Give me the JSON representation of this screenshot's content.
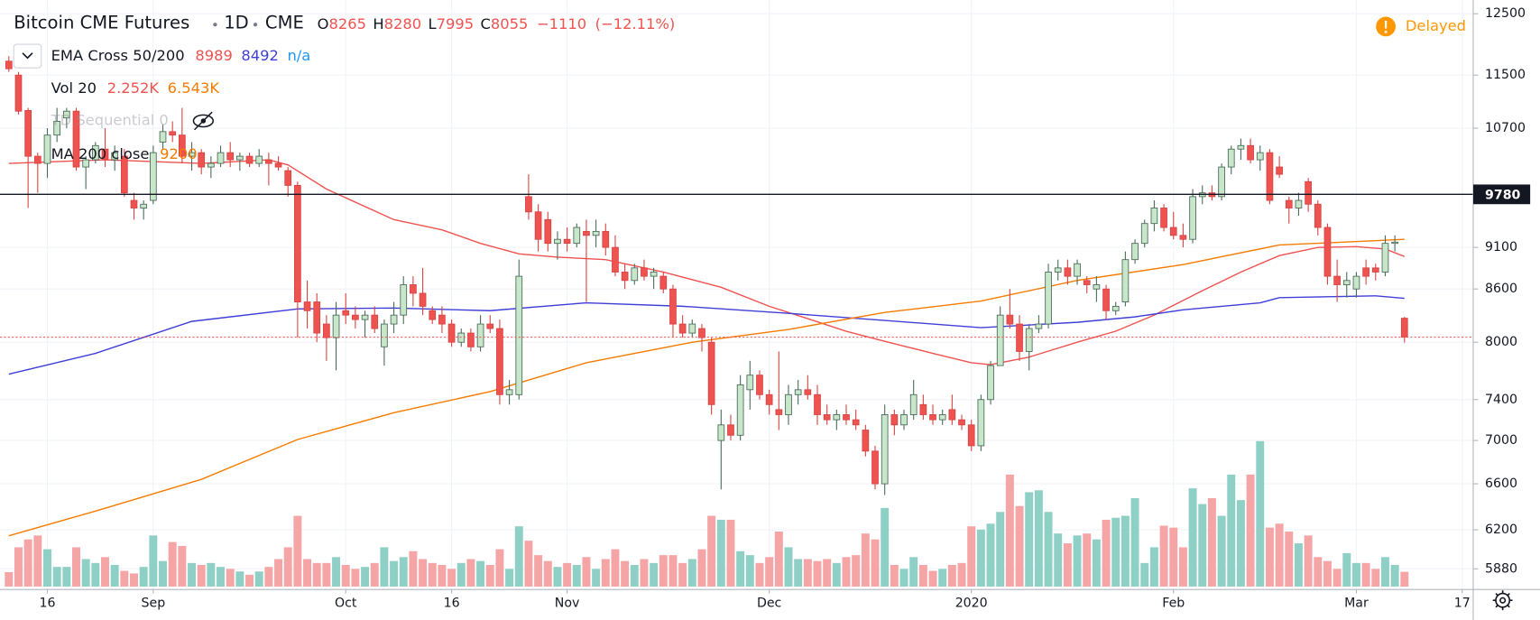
{
  "chart_data": {
    "type": "candlestick",
    "title": "Bitcoin CME Futures",
    "interval": "1D",
    "exchange": "CME",
    "status": "Delayed",
    "log_scale": true,
    "grid": true,
    "ylim": [
      5717,
      12735
    ],
    "yticks": [
      5880,
      6200,
      6600,
      7000,
      7400,
      8000,
      8600,
      9100,
      10700,
      11500,
      12500
    ],
    "xlim": [
      -0.92,
      152.14
    ],
    "xticks": [
      {
        "value": 4,
        "label": "16"
      },
      {
        "value": 15,
        "label": "Sep"
      },
      {
        "value": 35,
        "label": "Oct"
      },
      {
        "value": 46,
        "label": "16"
      },
      {
        "value": 58,
        "label": "Nov"
      },
      {
        "value": 79,
        "label": "Dec"
      },
      {
        "value": 100,
        "label": "2020"
      },
      {
        "value": 121,
        "label": "Feb"
      },
      {
        "value": 140,
        "label": "Mar"
      },
      {
        "value": 151,
        "label": "17"
      }
    ],
    "up_color": "#c8e6c9",
    "up_border": "#4a6b5a",
    "down_color": "#ef5350",
    "down_border": "#d84343",
    "volume_up_color": "#8fd0c6",
    "volume_down_color": "#f5a5a5",
    "volume_lim": [
      0,
      30000
    ],
    "header": {
      "labels": [
        "O",
        "H",
        "L",
        "C"
      ],
      "change": {
        "value": -1110,
        "label": "−1110"
      },
      "change_pct": {
        "value": -12.11,
        "label": "(−12.11%)"
      }
    },
    "hline": {
      "value": 9780,
      "color": "#131722"
    },
    "ohlc": [
      [
        11720,
        11800,
        11550,
        11600
      ],
      [
        11500,
        11550,
        10900,
        10950
      ],
      [
        10960,
        11000,
        9600,
        10300
      ],
      [
        10300,
        10350,
        9800,
        10200
      ],
      [
        10200,
        10700,
        10000,
        10600
      ],
      [
        10600,
        11000,
        10500,
        10800
      ],
      [
        10850,
        11000,
        10700,
        10950
      ],
      [
        10950,
        11000,
        10100,
        10150
      ],
      [
        10150,
        10300,
        9850,
        10250
      ],
      [
        10250,
        10500,
        10200,
        10450
      ],
      [
        10400,
        10700,
        10150,
        10250
      ],
      [
        10250,
        10450,
        10100,
        10350
      ],
      [
        10300,
        10400,
        9750,
        9800
      ],
      [
        9700,
        9800,
        9450,
        9600
      ],
      [
        9600,
        9700,
        9450,
        9650
      ],
      [
        9700,
        10450,
        9650,
        10350
      ],
      [
        10500,
        10750,
        10400,
        10650
      ],
      [
        10650,
        10800,
        10500,
        10600
      ],
      [
        10600,
        11000,
        10200,
        10300
      ],
      [
        10300,
        10500,
        10100,
        10350
      ],
      [
        10350,
        10400,
        10050,
        10150
      ],
      [
        10150,
        10300,
        10000,
        10200
      ],
      [
        10200,
        10450,
        10150,
        10350
      ],
      [
        10350,
        10500,
        10150,
        10250
      ],
      [
        10250,
        10350,
        10100,
        10300
      ],
      [
        10300,
        10350,
        10150,
        10200
      ],
      [
        10200,
        10400,
        10150,
        10300
      ],
      [
        10250,
        10350,
        9900,
        10200
      ],
      [
        10200,
        10300,
        10100,
        10150
      ],
      [
        10100,
        10150,
        9750,
        9900
      ],
      [
        9900,
        9950,
        8050,
        8450
      ],
      [
        8450,
        8700,
        8150,
        8350
      ],
      [
        8450,
        8550,
        8000,
        8100
      ],
      [
        8200,
        8300,
        7800,
        8050
      ],
      [
        8050,
        8450,
        7700,
        8300
      ],
      [
        8350,
        8550,
        8200,
        8300
      ],
      [
        8300,
        8400,
        8150,
        8250
      ],
      [
        8250,
        8350,
        8050,
        8300
      ],
      [
        8300,
        8400,
        8100,
        8150
      ],
      [
        7950,
        8250,
        7750,
        8200
      ],
      [
        8200,
        8450,
        8100,
        8300
      ],
      [
        8300,
        8750,
        8200,
        8650
      ],
      [
        8650,
        8750,
        8400,
        8550
      ],
      [
        8550,
        8850,
        8300,
        8400
      ],
      [
        8350,
        8400,
        8200,
        8250
      ],
      [
        8300,
        8400,
        8100,
        8200
      ],
      [
        8200,
        8250,
        7950,
        8000
      ],
      [
        8000,
        8150,
        7950,
        8100
      ],
      [
        8100,
        8150,
        7900,
        7950
      ],
      [
        7950,
        8300,
        7900,
        8200
      ],
      [
        8200,
        8300,
        8100,
        8150
      ],
      [
        8150,
        8250,
        7350,
        7450
      ],
      [
        7450,
        7600,
        7350,
        7500
      ],
      [
        7450,
        8950,
        7400,
        8750
      ],
      [
        9750,
        10050,
        9450,
        9550
      ],
      [
        9550,
        9650,
        9050,
        9200
      ],
      [
        9450,
        9550,
        9050,
        9150
      ],
      [
        9150,
        9300,
        8950,
        9200
      ],
      [
        9200,
        9350,
        9050,
        9150
      ],
      [
        9150,
        9400,
        9100,
        9350
      ],
      [
        9300,
        9450,
        8450,
        9250
      ],
      [
        9250,
        9450,
        9100,
        9300
      ],
      [
        9300,
        9400,
        9000,
        9100
      ],
      [
        9100,
        9250,
        8750,
        8800
      ],
      [
        8800,
        8900,
        8600,
        8700
      ],
      [
        8700,
        8900,
        8650,
        8850
      ],
      [
        8850,
        8950,
        8700,
        8750
      ],
      [
        8750,
        8850,
        8600,
        8800
      ],
      [
        8750,
        8800,
        8550,
        8600
      ],
      [
        8600,
        8650,
        8050,
        8200
      ],
      [
        8200,
        8300,
        8050,
        8100
      ],
      [
        8100,
        8250,
        8050,
        8200
      ],
      [
        8150,
        8200,
        7900,
        8050
      ],
      [
        8000,
        8050,
        7250,
        7350
      ],
      [
        7000,
        7300,
        6550,
        7150
      ],
      [
        7150,
        7250,
        7000,
        7050
      ],
      [
        7050,
        7650,
        7000,
        7550
      ],
      [
        7500,
        7800,
        7300,
        7650
      ],
      [
        7650,
        7700,
        7400,
        7450
      ],
      [
        7450,
        7500,
        7250,
        7350
      ],
      [
        7300,
        7900,
        7100,
        7250
      ],
      [
        7250,
        7550,
        7150,
        7450
      ],
      [
        7450,
        7600,
        7350,
        7500
      ],
      [
        7500,
        7650,
        7400,
        7450
      ],
      [
        7450,
        7550,
        7150,
        7250
      ],
      [
        7250,
        7350,
        7150,
        7200
      ],
      [
        7200,
        7300,
        7100,
        7250
      ],
      [
        7250,
        7350,
        7150,
        7200
      ],
      [
        7200,
        7300,
        7100,
        7150
      ],
      [
        7100,
        7150,
        6850,
        6900
      ],
      [
        6900,
        6950,
        6550,
        6600
      ],
      [
        6600,
        7350,
        6500,
        7250
      ],
      [
        7250,
        7300,
        7050,
        7150
      ],
      [
        7150,
        7300,
        7100,
        7250
      ],
      [
        7250,
        7600,
        7200,
        7450
      ],
      [
        7350,
        7450,
        7200,
        7250
      ],
      [
        7250,
        7350,
        7150,
        7200
      ],
      [
        7200,
        7300,
        7150,
        7250
      ],
      [
        7300,
        7450,
        7150,
        7200
      ],
      [
        7200,
        7250,
        7100,
        7150
      ],
      [
        7150,
        7200,
        6900,
        6950
      ],
      [
        6950,
        7450,
        6900,
        7400
      ],
      [
        7400,
        7800,
        7350,
        7750
      ],
      [
        7750,
        8400,
        7750,
        8300
      ],
      [
        8300,
        8600,
        8150,
        8200
      ],
      [
        8200,
        8300,
        7800,
        7900
      ],
      [
        7900,
        8200,
        7700,
        8150
      ],
      [
        8150,
        8300,
        8100,
        8200
      ],
      [
        8200,
        8900,
        8150,
        8800
      ],
      [
        8800,
        8950,
        8700,
        8850
      ],
      [
        8850,
        8950,
        8650,
        8750
      ],
      [
        8750,
        8950,
        8650,
        8900
      ],
      [
        8700,
        8750,
        8550,
        8650
      ],
      [
        8600,
        8750,
        8450,
        8650
      ],
      [
        8600,
        8650,
        8250,
        8350
      ],
      [
        8350,
        8450,
        8300,
        8400
      ],
      [
        8450,
        9050,
        8400,
        8950
      ],
      [
        8950,
        9200,
        8900,
        9150
      ],
      [
        9150,
        9450,
        9100,
        9400
      ],
      [
        9400,
        9700,
        9300,
        9600
      ],
      [
        9600,
        9650,
        9300,
        9350
      ],
      [
        9350,
        9550,
        9200,
        9250
      ],
      [
        9250,
        9400,
        9100,
        9200
      ],
      [
        9200,
        9850,
        9150,
        9750
      ],
      [
        9750,
        9900,
        9650,
        9800
      ],
      [
        9800,
        9900,
        9700,
        9750
      ],
      [
        9750,
        10200,
        9700,
        10150
      ],
      [
        10150,
        10450,
        10050,
        10400
      ],
      [
        10400,
        10550,
        10250,
        10450
      ],
      [
        10450,
        10550,
        10200,
        10250
      ],
      [
        10250,
        10450,
        10100,
        10350
      ],
      [
        10350,
        10400,
        9650,
        9700
      ],
      [
        10150,
        10300,
        10000,
        10050
      ],
      [
        9700,
        9750,
        9400,
        9600
      ],
      [
        9600,
        9800,
        9500,
        9700
      ],
      [
        9950,
        10000,
        9550,
        9650
      ],
      [
        9650,
        9700,
        9250,
        9350
      ],
      [
        9350,
        9400,
        8650,
        8750
      ],
      [
        8750,
        8950,
        8450,
        8650
      ],
      [
        8650,
        8800,
        8500,
        8700
      ],
      [
        8600,
        8800,
        8500,
        8750
      ],
      [
        8850,
        8950,
        8650,
        8750
      ],
      [
        8850,
        8900,
        8700,
        8800
      ],
      [
        8800,
        9250,
        8750,
        9150
      ],
      [
        9150,
        9250,
        9050,
        9165
      ],
      [
        8265,
        8280,
        7995,
        8055
      ]
    ],
    "volume": [
      2200,
      6000,
      7200,
      7800,
      5700,
      3000,
      3000,
      6000,
      4200,
      3600,
      4500,
      3300,
      2400,
      2000,
      3000,
      7800,
      3900,
      6800,
      6200,
      3600,
      3300,
      3600,
      3000,
      2700,
      2300,
      1800,
      2300,
      3000,
      4200,
      6000,
      10800,
      4200,
      3600,
      3600,
      4500,
      3300,
      2700,
      3000,
      3600,
      6000,
      3900,
      4500,
      5400,
      4200,
      3600,
      3300,
      2700,
      3600,
      4200,
      3900,
      3300,
      5700,
      2700,
      9200,
      7000,
      4800,
      3900,
      3000,
      3600,
      3300,
      4500,
      2700,
      4200,
      5700,
      3900,
      3300,
      4200,
      3600,
      4800,
      4800,
      3600,
      4200,
      5700,
      10800,
      10200,
      10200,
      5400,
      4800,
      3600,
      4500,
      8400,
      6000,
      4200,
      4200,
      3900,
      4200,
      3600,
      4500,
      4800,
      8100,
      7200,
      12000,
      3300,
      2700,
      4500,
      3300,
      2400,
      2700,
      3300,
      3600,
      9200,
      8700,
      9600,
      11400,
      17100,
      12300,
      14400,
      14700,
      11400,
      8100,
      6600,
      7800,
      8100,
      7200,
      10200,
      10500,
      10800,
      13500,
      3600,
      6000,
      9300,
      9000,
      6000,
      15000,
      12600,
      13500,
      10800,
      17100,
      13200,
      17100,
      22200,
      9000,
      9600,
      8400,
      6600,
      7800,
      4500,
      3900,
      2700,
      5100,
      3600,
      3600,
      2700,
      4500,
      3300,
      2252
    ],
    "indicators": [
      {
        "name": "EMA Cross 50/200",
        "extra": "n/a",
        "extra_color": "#2196f3",
        "lines": [
          {
            "color": "#ef5350",
            "x": [
              0,
              10,
              20,
              27,
              29,
              33,
              40,
              45,
              49,
              53,
              57,
              62,
              68,
              74,
              79,
              83,
              87,
              91,
              96,
              100,
              102,
              106,
              111,
              115,
              119,
              124,
              128,
              132,
              136,
              140,
              143,
              145
            ],
            "values": [
              10200,
              10250,
              10200,
              10250,
              10180,
              9850,
              9450,
              9320,
              9150,
              9020,
              8980,
              8950,
              8800,
              8620,
              8400,
              8260,
              8120,
              8010,
              7880,
              7780,
              7760,
              7840,
              8000,
              8120,
              8300,
              8580,
              8800,
              9000,
              9100,
              9110,
              9080,
              8989
            ]
          },
          {
            "color": "#3f3fd8",
            "x": [
              0,
              9,
              19,
              30,
              40,
              50,
              60,
              70,
              81,
              91,
              101,
              111,
              117,
              122,
              130,
              132,
              142,
              145
            ],
            "values": [
              7660,
              7880,
              8230,
              8370,
              8380,
              8350,
              8440,
              8400,
              8320,
              8240,
              8160,
              8220,
              8280,
              8360,
              8440,
              8500,
              8520,
              8492
            ]
          }
        ]
      },
      {
        "name": "Vol 20",
        "values": [
          {
            "value": 2252,
            "label": "2.252K",
            "color": "#ef5350"
          },
          {
            "value": 6543,
            "label": "6.543K",
            "color": "#f57c00"
          }
        ]
      },
      {
        "name": "TD Sequential 0",
        "hidden": true
      },
      {
        "name": "MA 200 close",
        "lines": [
          {
            "color": "#f57c00",
            "x": [
              0,
              9,
              20,
              30,
              40,
              50,
              60,
              71,
              81,
              91,
              101,
              111,
              122,
              132,
              145
            ],
            "values": [
              6150,
              6360,
              6640,
              7010,
              7270,
              7480,
              7780,
              8000,
              8140,
              8330,
              8460,
              8700,
              8890,
              9130,
              9200
            ]
          }
        ]
      }
    ]
  }
}
